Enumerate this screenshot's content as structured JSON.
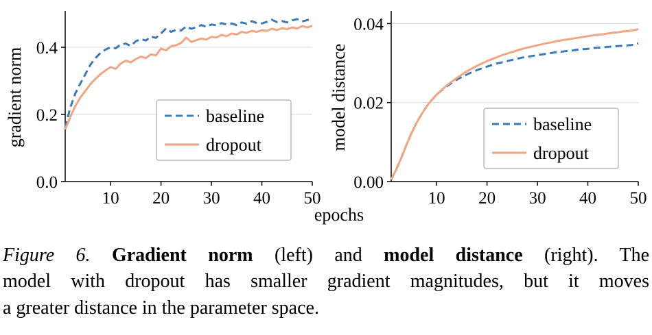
{
  "chart_data": [
    {
      "type": "line",
      "ylabel": "gradient norm",
      "xlabel": "epochs",
      "xlim": [
        1,
        50
      ],
      "ylim": [
        0.0,
        0.5
      ],
      "xticks": [
        10,
        20,
        30,
        40,
        50
      ],
      "yticks": [
        0.0,
        0.2,
        0.4
      ],
      "ytick_labels": [
        "0.0",
        "0.2",
        "0.4"
      ],
      "grid": "horizontal",
      "legend_position": "center-right-inside",
      "series": [
        {
          "name": "baseline",
          "color": "#3c79b8",
          "dash": true,
          "x_start": 1,
          "values": [
            0.16,
            0.22,
            0.262,
            0.292,
            0.32,
            0.348,
            0.368,
            0.383,
            0.393,
            0.4,
            0.397,
            0.408,
            0.411,
            0.404,
            0.418,
            0.424,
            0.42,
            0.432,
            0.428,
            0.441,
            0.456,
            0.446,
            0.452,
            0.45,
            0.462,
            0.455,
            0.46,
            0.466,
            0.461,
            0.468,
            0.465,
            0.472,
            0.468,
            0.471,
            0.466,
            0.474,
            0.47,
            0.478,
            0.472,
            0.471,
            0.476,
            0.482,
            0.475,
            0.478,
            0.474,
            0.48,
            0.484,
            0.477,
            0.481,
            0.486
          ]
        },
        {
          "name": "dropout",
          "color": "#f0a583",
          "dash": false,
          "x_start": 1,
          "values": [
            0.155,
            0.192,
            0.225,
            0.25,
            0.27,
            0.29,
            0.306,
            0.32,
            0.331,
            0.341,
            0.336,
            0.351,
            0.36,
            0.355,
            0.365,
            0.372,
            0.368,
            0.379,
            0.376,
            0.396,
            0.391,
            0.403,
            0.406,
            0.413,
            0.429,
            0.416,
            0.421,
            0.426,
            0.423,
            0.431,
            0.429,
            0.437,
            0.433,
            0.441,
            0.438,
            0.446,
            0.443,
            0.449,
            0.446,
            0.451,
            0.449,
            0.455,
            0.451,
            0.457,
            0.454,
            0.459,
            0.456,
            0.463,
            0.459,
            0.464
          ]
        }
      ]
    },
    {
      "type": "line",
      "ylabel": "model distance",
      "xlabel": "epochs",
      "xlim": [
        1,
        50
      ],
      "ylim": [
        0.0,
        0.0425
      ],
      "xticks": [
        10,
        20,
        30,
        40,
        50
      ],
      "yticks": [
        0.0,
        0.02,
        0.04
      ],
      "ytick_labels": [
        "0.00",
        "0.02",
        "0.04"
      ],
      "grid": "horizontal",
      "legend_position": "lower-right-inside",
      "series": [
        {
          "name": "baseline",
          "color": "#3c79b8",
          "dash": true,
          "x_start": 1,
          "values": [
            0.0005,
            0.003,
            0.006,
            0.0092,
            0.0122,
            0.0148,
            0.017,
            0.019,
            0.0206,
            0.022,
            0.0231,
            0.0241,
            0.025,
            0.0258,
            0.0265,
            0.0271,
            0.0277,
            0.0282,
            0.0287,
            0.0291,
            0.0295,
            0.0299,
            0.0302,
            0.0305,
            0.0308,
            0.0311,
            0.0314,
            0.0316,
            0.0318,
            0.032,
            0.0322,
            0.0324,
            0.0326,
            0.0328,
            0.0329,
            0.0331,
            0.0332,
            0.0334,
            0.0335,
            0.0336,
            0.0338,
            0.0339,
            0.034,
            0.0341,
            0.0342,
            0.0343,
            0.0344,
            0.0345,
            0.0346,
            0.035
          ]
        },
        {
          "name": "dropout",
          "color": "#f0a583",
          "dash": false,
          "x_start": 1,
          "values": [
            0.0005,
            0.003,
            0.006,
            0.0092,
            0.0122,
            0.0148,
            0.017,
            0.019,
            0.0206,
            0.022,
            0.0232,
            0.0243,
            0.0253,
            0.0262,
            0.0271,
            0.0279,
            0.0286,
            0.0293,
            0.0299,
            0.0305,
            0.031,
            0.0315,
            0.032,
            0.0324,
            0.0328,
            0.0332,
            0.0336,
            0.0339,
            0.0342,
            0.0345,
            0.0348,
            0.0351,
            0.0353,
            0.0356,
            0.0358,
            0.036,
            0.0362,
            0.0364,
            0.0366,
            0.0368,
            0.037,
            0.0372,
            0.0373,
            0.0375,
            0.0377,
            0.0378,
            0.038,
            0.0381,
            0.0383,
            0.0386
          ]
        }
      ]
    }
  ],
  "caption": {
    "lines": [
      {
        "justify": true,
        "parts": [
          {
            "text": "Figure 6.",
            "style": "italic"
          },
          {
            "text": " ",
            "style": "normal"
          },
          {
            "text": "Gradient norm",
            "style": "bold"
          },
          {
            "text": " (left) and ",
            "style": "normal"
          },
          {
            "text": "model distance",
            "style": "bold"
          },
          {
            "text": " (right). The",
            "style": "normal"
          }
        ]
      },
      {
        "justify": true,
        "parts": [
          {
            "text": "model with dropout has smaller gradient magnitudes, but it moves",
            "style": "normal"
          }
        ]
      },
      {
        "justify": false,
        "parts": [
          {
            "text": "a greater distance in the parameter space.",
            "style": "normal"
          }
        ]
      }
    ]
  }
}
